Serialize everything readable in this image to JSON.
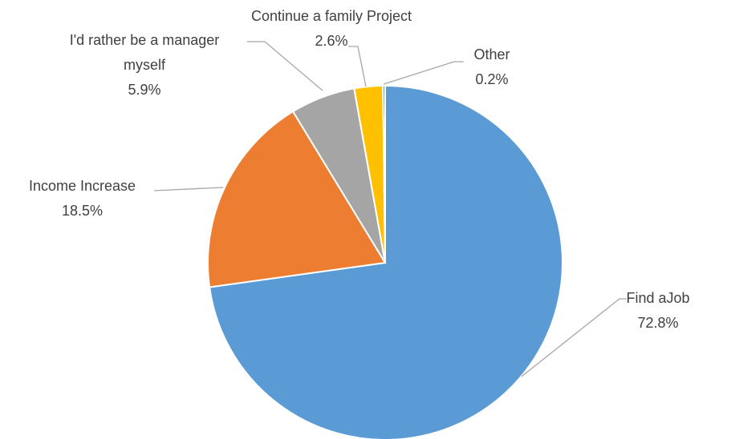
{
  "chart_data": {
    "type": "pie",
    "categories": [
      "Find aJob",
      "Income Increase",
      "I'd rather be a manager myself",
      "Continue a family Project",
      "Other"
    ],
    "values": [
      72.8,
      18.5,
      5.9,
      2.6,
      0.2
    ],
    "value_labels": [
      "72.8%",
      "18.5%",
      "5.9%",
      "2.6%",
      "0.2%"
    ],
    "colors": [
      "#5b9bd5",
      "#ed7d31",
      "#a5a5a5",
      "#ffc000",
      "#4472c4"
    ]
  }
}
